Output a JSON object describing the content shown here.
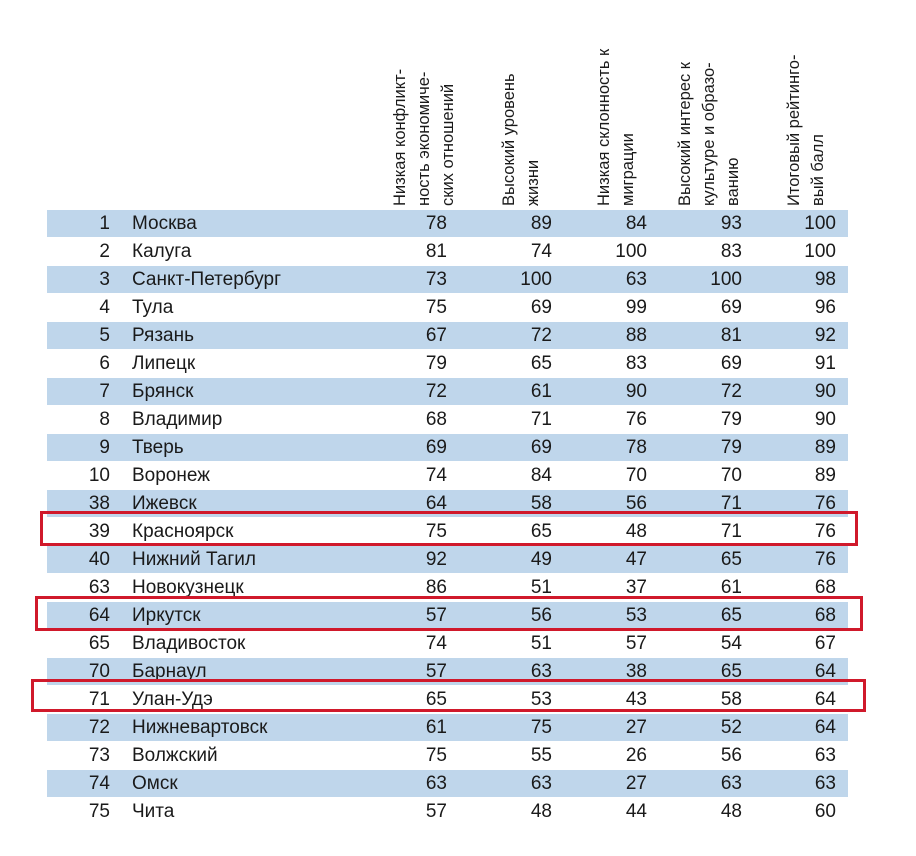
{
  "table": {
    "headers": [
      [
        "Низкая конфликт-",
        "ность экономиче-",
        "ских отношений"
      ],
      [
        "Высокий уровень",
        "жизни"
      ],
      [
        "Низкая склонность к",
        "миграции"
      ],
      [
        "Высокий интерес к",
        "культуре и образо-",
        "ванию"
      ],
      [
        "Итоговый рейтинго-",
        "вый балл"
      ]
    ],
    "rows": [
      {
        "rank": "1",
        "city": "Москва",
        "v1": "78",
        "v2": "89",
        "v3": "84",
        "v4": "93",
        "v5": "100"
      },
      {
        "rank": "2",
        "city": "Калуга",
        "v1": "81",
        "v2": "74",
        "v3": "100",
        "v4": "83",
        "v5": "100"
      },
      {
        "rank": "3",
        "city": "Санкт-Петербург",
        "v1": "73",
        "v2": "100",
        "v3": "63",
        "v4": "100",
        "v5": "98"
      },
      {
        "rank": "4",
        "city": "Тула",
        "v1": "75",
        "v2": "69",
        "v3": "99",
        "v4": "69",
        "v5": "96"
      },
      {
        "rank": "5",
        "city": "Рязань",
        "v1": "67",
        "v2": "72",
        "v3": "88",
        "v4": "81",
        "v5": "92"
      },
      {
        "rank": "6",
        "city": "Липецк",
        "v1": "79",
        "v2": "65",
        "v3": "83",
        "v4": "69",
        "v5": "91"
      },
      {
        "rank": "7",
        "city": "Брянск",
        "v1": "72",
        "v2": "61",
        "v3": "90",
        "v4": "72",
        "v5": "90"
      },
      {
        "rank": "8",
        "city": "Владимир",
        "v1": "68",
        "v2": "71",
        "v3": "76",
        "v4": "79",
        "v5": "90"
      },
      {
        "rank": "9",
        "city": "Тверь",
        "v1": "69",
        "v2": "69",
        "v3": "78",
        "v4": "79",
        "v5": "89"
      },
      {
        "rank": "10",
        "city": "Воронеж",
        "v1": "74",
        "v2": "84",
        "v3": "70",
        "v4": "70",
        "v5": "89"
      },
      {
        "rank": "38",
        "city": "Ижевск",
        "v1": "64",
        "v2": "58",
        "v3": "56",
        "v4": "71",
        "v5": "76"
      },
      {
        "rank": "39",
        "city": "Красноярск",
        "v1": "75",
        "v2": "65",
        "v3": "48",
        "v4": "71",
        "v5": "76",
        "highlighted": true
      },
      {
        "rank": "40",
        "city": "Нижний Тагил",
        "v1": "92",
        "v2": "49",
        "v3": "47",
        "v4": "65",
        "v5": "76"
      },
      {
        "rank": "63",
        "city": "Новокузнецк",
        "v1": "86",
        "v2": "51",
        "v3": "37",
        "v4": "61",
        "v5": "68"
      },
      {
        "rank": "64",
        "city": "Иркутск",
        "v1": "57",
        "v2": "56",
        "v3": "53",
        "v4": "65",
        "v5": "68",
        "highlighted": true
      },
      {
        "rank": "65",
        "city": "Владивосток",
        "v1": "74",
        "v2": "51",
        "v3": "57",
        "v4": "54",
        "v5": "67"
      },
      {
        "rank": "70",
        "city": "Барнаул",
        "v1": "57",
        "v2": "63",
        "v3": "38",
        "v4": "65",
        "v5": "64"
      },
      {
        "rank": "71",
        "city": "Улан-Удэ",
        "v1": "65",
        "v2": "53",
        "v3": "43",
        "v4": "58",
        "v5": "64",
        "highlighted": true
      },
      {
        "rank": "72",
        "city": "Нижневартовск",
        "v1": "61",
        "v2": "75",
        "v3": "27",
        "v4": "52",
        "v5": "64"
      },
      {
        "rank": "73",
        "city": "Волжский",
        "v1": "75",
        "v2": "55",
        "v3": "26",
        "v4": "56",
        "v5": "63"
      },
      {
        "rank": "74",
        "city": "Омск",
        "v1": "63",
        "v2": "63",
        "v3": "27",
        "v4": "63",
        "v5": "63"
      },
      {
        "rank": "75",
        "city": "Чита",
        "v1": "57",
        "v2": "48",
        "v3": "44",
        "v4": "48",
        "v5": "60"
      }
    ]
  },
  "colors": {
    "row_shade": "#bfd6eb",
    "highlight_border": "#d0192b",
    "text": "#1a1a1a"
  }
}
